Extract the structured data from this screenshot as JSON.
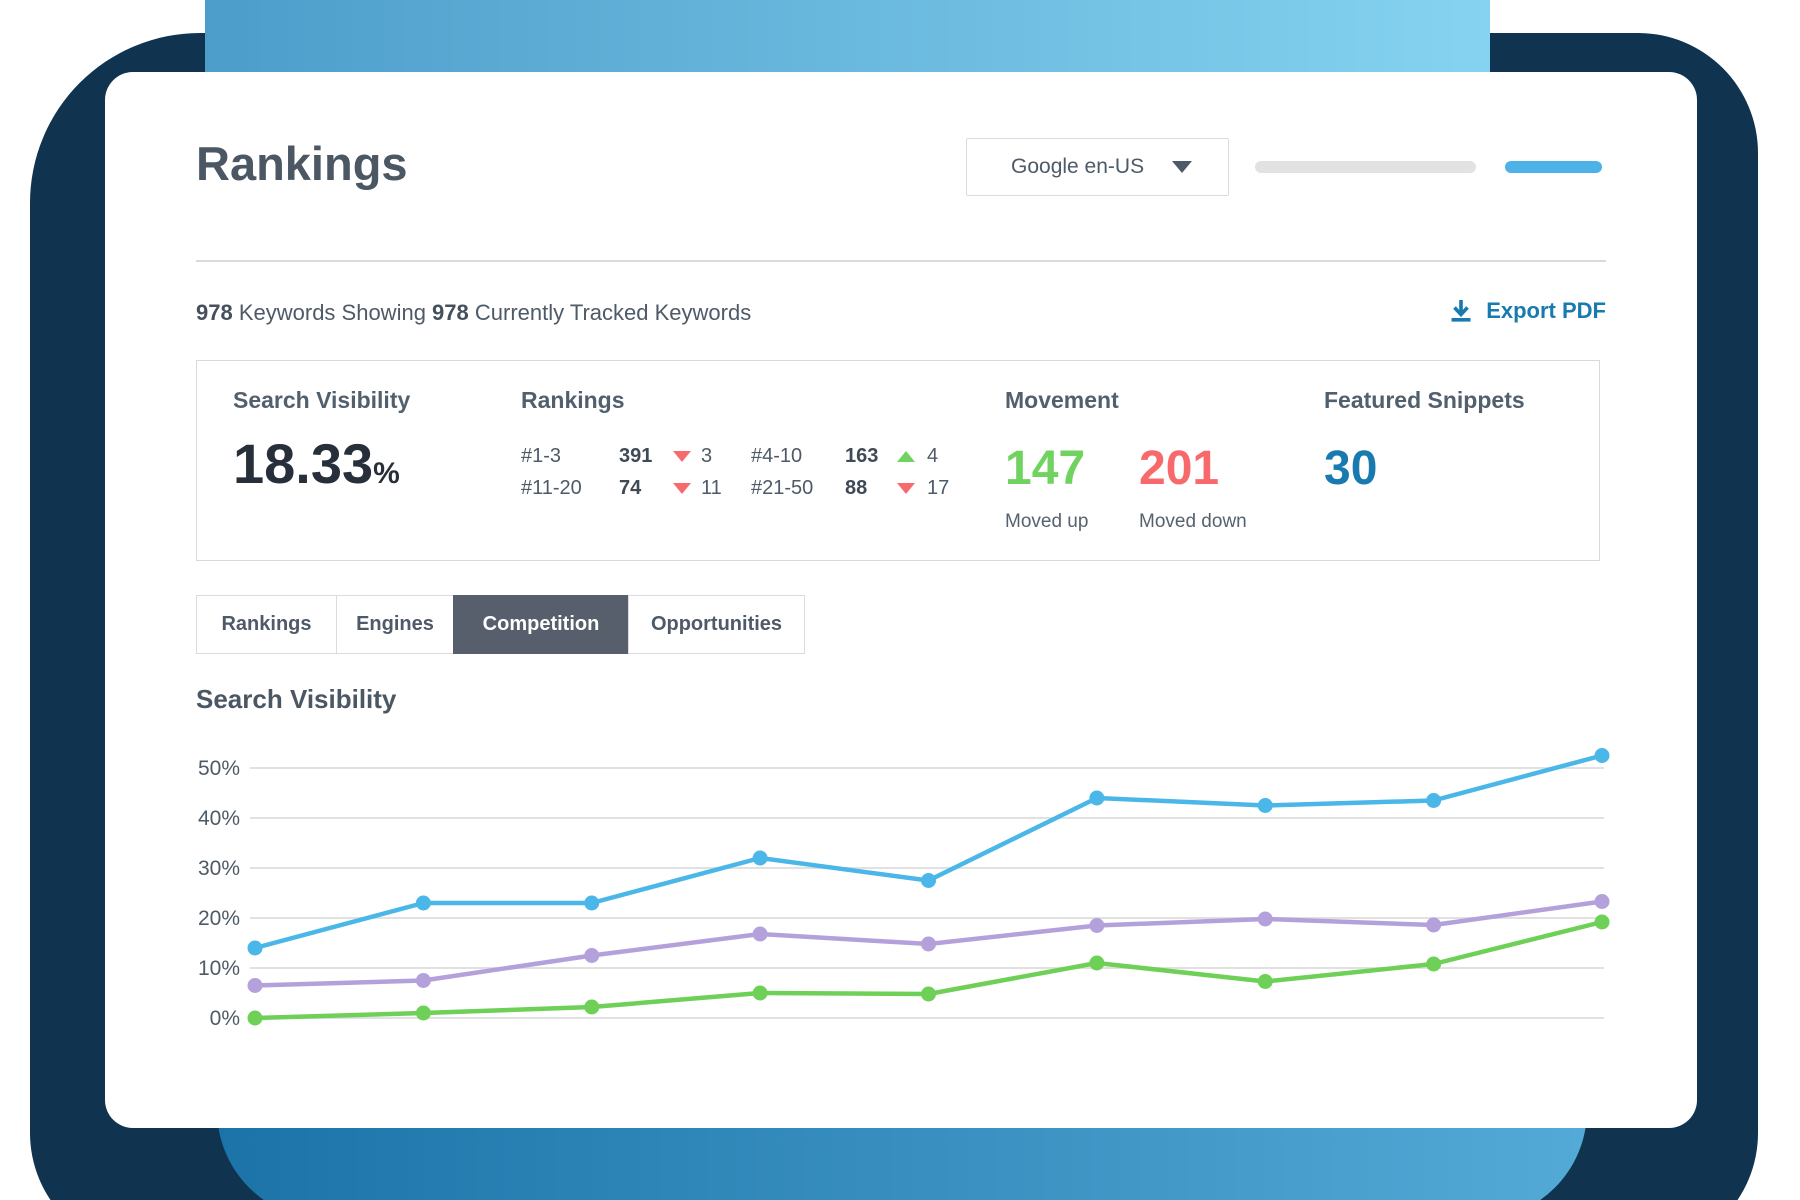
{
  "header": {
    "title": "Rankings",
    "dropdown": {
      "value": "Google en-US",
      "icon": "caret-down"
    }
  },
  "subheader": {
    "keywords_count": "978",
    "keywords_text": " Keywords Showing ",
    "tracked_count": "978",
    "tracked_text": " Currently Tracked Keywords",
    "export_label": "Export PDF",
    "export_icon": "download-arrow"
  },
  "stats": {
    "search_visibility": {
      "label": "Search Visibility",
      "value": "18.33",
      "unit": "%"
    },
    "rankings": {
      "label": "Rankings",
      "cells": [
        {
          "range": "#1-3",
          "value": "391",
          "direction": "down",
          "change": "3"
        },
        {
          "range": "#4-10",
          "value": "163",
          "direction": "up",
          "change": "4"
        },
        {
          "range": "#11-20",
          "value": "74",
          "direction": "down",
          "change": "11"
        },
        {
          "range": "#21-50",
          "value": "88",
          "direction": "down",
          "change": "17"
        }
      ]
    },
    "movement": {
      "label": "Movement",
      "up_value": "147",
      "up_label": "Moved up",
      "down_value": "201",
      "down_label": "Moved down"
    },
    "featured_snippets": {
      "label": "Featured Snippets",
      "value": "30"
    }
  },
  "tabs": [
    {
      "label": "Rankings",
      "state": "inactive"
    },
    {
      "label": "Engines",
      "state": "inactive"
    },
    {
      "label": "Competition",
      "state": "active"
    },
    {
      "label": "Opportunities",
      "state": "inactive"
    }
  ],
  "chart_heading": "Search Visibility",
  "chart_data": {
    "type": "line",
    "title": "Search Visibility",
    "x": [
      1,
      2,
      3,
      4,
      5,
      6,
      7,
      8,
      9
    ],
    "x_labels_shown": false,
    "xlabel": "",
    "ylabel": "",
    "ylim": [
      0,
      55
    ],
    "yticks": [
      0,
      10,
      20,
      30,
      40,
      50
    ],
    "ytick_suffix": "%",
    "grid": "horizontal",
    "legend": "none",
    "series": [
      {
        "name": "competitor-blue",
        "color": "#4ab7e8",
        "values": [
          14,
          23,
          23,
          32,
          27.5,
          44,
          42.5,
          43.5,
          52.5
        ]
      },
      {
        "name": "competitor-purple",
        "color": "#b4a1dc",
        "values": [
          6.5,
          7.5,
          12.5,
          16.8,
          14.8,
          18.5,
          19.8,
          18.6,
          23.3
        ]
      },
      {
        "name": "competitor-green",
        "color": "#6ed057",
        "values": [
          0,
          1,
          2.2,
          5,
          4.8,
          11,
          7.3,
          10.8,
          19.2
        ]
      }
    ]
  },
  "colors": {
    "navy_background": "#10334f",
    "top_band_gradient": [
      "#4d9dcb",
      "#85d3f0"
    ],
    "bottom_band_gradient": [
      "#1b73a8",
      "#54aad6"
    ],
    "accent_blue": "#187aae",
    "positive_green": "#70d25f",
    "negative_red": "#f8696c",
    "progress_track": "#e2e2e2",
    "progress_accent": "#4cb2e8",
    "slate_text": "#4e5a67",
    "gridline": "#e1e1e1"
  }
}
